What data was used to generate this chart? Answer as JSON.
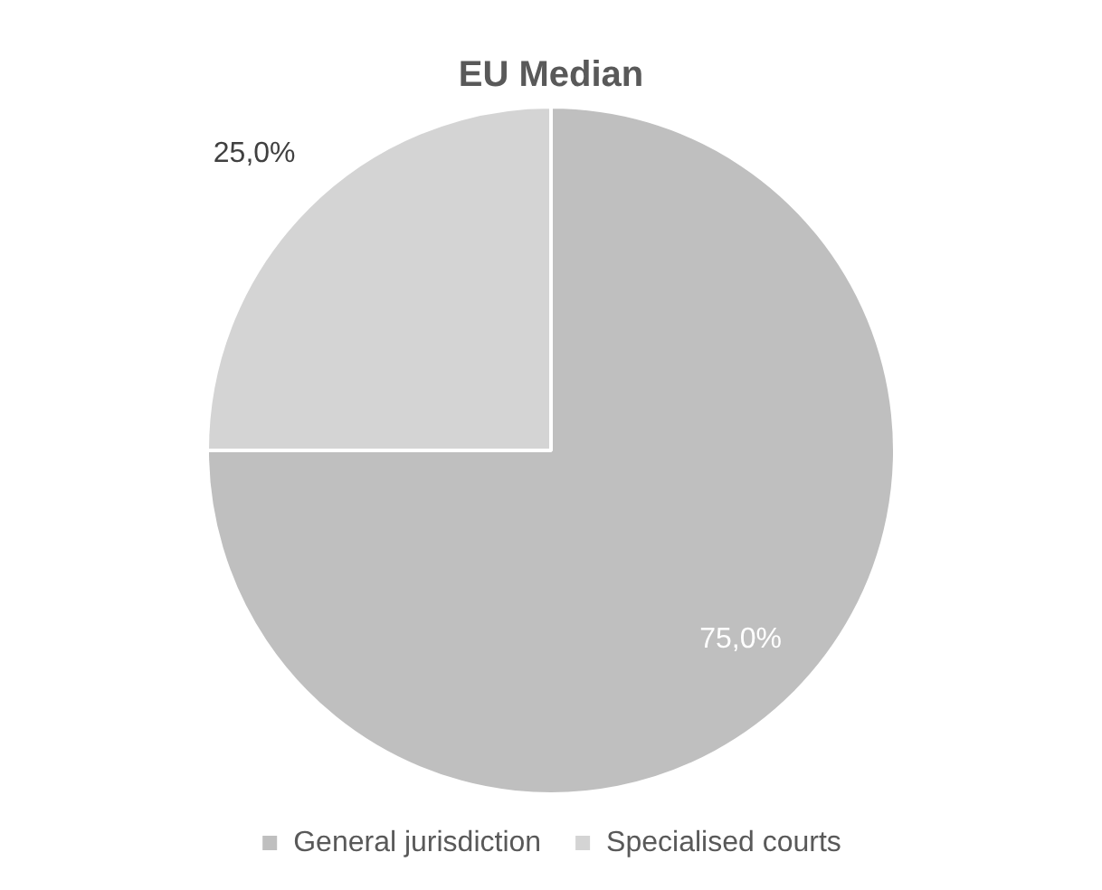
{
  "chart_data": {
    "type": "pie",
    "title": "EU Median",
    "categories": [
      "General jurisdiction",
      "Specialised courts"
    ],
    "values": [
      75,
      25
    ],
    "colors": [
      "#bfbfbf",
      "#d4d4d4"
    ],
    "value_labels": [
      "75,0%",
      "25,0%"
    ],
    "legend": "bottom"
  }
}
